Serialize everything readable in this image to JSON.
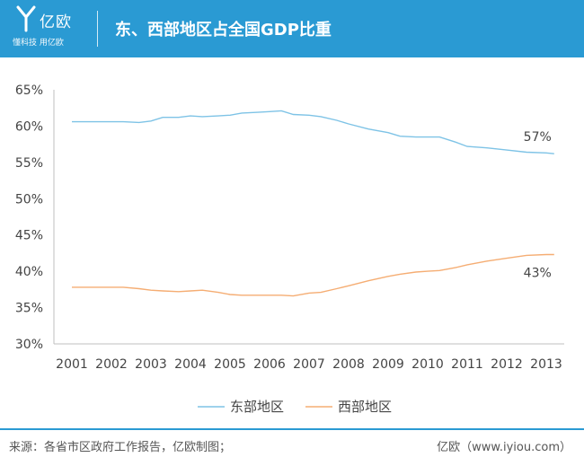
{
  "header": {
    "logo_name": "亿欧",
    "logo_tagline": "懂科技 用亿欧",
    "title": "东、西部地区占全国GDP比重"
  },
  "colors": {
    "header_bg": "#2a9ad3",
    "east": "#7ec3e6",
    "west": "#f5ad73",
    "axis": "#bfbfbf",
    "text": "#444444"
  },
  "chart_data": {
    "type": "line",
    "title": "东、西部地区占全国GDP比重",
    "x": [
      "2001",
      "2002",
      "2003",
      "2004",
      "2005",
      "2006",
      "2007",
      "2008",
      "2009",
      "2010",
      "2011",
      "2012",
      "2013"
    ],
    "ylim": [
      30,
      65
    ],
    "yticks": [
      "30%",
      "35%",
      "40%",
      "45%",
      "50%",
      "55%",
      "60%",
      "65%"
    ],
    "grid": false,
    "legend_position": "bottom",
    "series": [
      {
        "name": "东部地区",
        "color": "#7ec3e6",
        "points": [
          [
            2001,
            60.6
          ],
          [
            2001.5,
            60.6
          ],
          [
            2002,
            60.6
          ],
          [
            2002.3,
            60.6
          ],
          [
            2002.7,
            60.5
          ],
          [
            2003,
            60.7
          ],
          [
            2003.3,
            61.2
          ],
          [
            2003.7,
            61.2
          ],
          [
            2004,
            61.4
          ],
          [
            2004.3,
            61.3
          ],
          [
            2004.7,
            61.4
          ],
          [
            2005,
            61.5
          ],
          [
            2005.3,
            61.8
          ],
          [
            2005.7,
            61.9
          ],
          [
            2006,
            62.0
          ],
          [
            2006.3,
            62.1
          ],
          [
            2006.6,
            61.6
          ],
          [
            2007,
            61.5
          ],
          [
            2007.3,
            61.3
          ],
          [
            2007.7,
            60.8
          ],
          [
            2008,
            60.3
          ],
          [
            2008.5,
            59.6
          ],
          [
            2009,
            59.1
          ],
          [
            2009.3,
            58.6
          ],
          [
            2009.7,
            58.5
          ],
          [
            2010,
            58.5
          ],
          [
            2010.3,
            58.5
          ],
          [
            2010.7,
            57.8
          ],
          [
            2011,
            57.2
          ],
          [
            2011.5,
            57.0
          ],
          [
            2012,
            56.7
          ],
          [
            2012.5,
            56.4
          ],
          [
            2013,
            56.3
          ],
          [
            2013.2,
            56.2
          ]
        ]
      },
      {
        "name": "西部地区",
        "color": "#f5ad73",
        "points": [
          [
            2001,
            37.8
          ],
          [
            2001.5,
            37.8
          ],
          [
            2002,
            37.8
          ],
          [
            2002.3,
            37.8
          ],
          [
            2002.7,
            37.6
          ],
          [
            2003,
            37.4
          ],
          [
            2003.3,
            37.3
          ],
          [
            2003.7,
            37.2
          ],
          [
            2004,
            37.3
          ],
          [
            2004.3,
            37.4
          ],
          [
            2004.7,
            37.1
          ],
          [
            2005,
            36.8
          ],
          [
            2005.3,
            36.7
          ],
          [
            2005.7,
            36.7
          ],
          [
            2006,
            36.7
          ],
          [
            2006.3,
            36.7
          ],
          [
            2006.6,
            36.6
          ],
          [
            2007,
            37.0
          ],
          [
            2007.3,
            37.1
          ],
          [
            2007.7,
            37.6
          ],
          [
            2008,
            38.0
          ],
          [
            2008.5,
            38.7
          ],
          [
            2009,
            39.3
          ],
          [
            2009.3,
            39.6
          ],
          [
            2009.7,
            39.9
          ],
          [
            2010,
            40.0
          ],
          [
            2010.3,
            40.1
          ],
          [
            2010.7,
            40.5
          ],
          [
            2011,
            40.9
          ],
          [
            2011.5,
            41.4
          ],
          [
            2012,
            41.8
          ],
          [
            2012.5,
            42.2
          ],
          [
            2013,
            42.3
          ],
          [
            2013.2,
            42.3
          ]
        ]
      }
    ],
    "annotations": [
      {
        "text": "57%",
        "series": "东部地区"
      },
      {
        "text": "43%",
        "series": "西部地区"
      }
    ]
  },
  "footer": {
    "source": "来源：各省市区政府工作报告，亿欧制图；",
    "brand": "亿欧（www.iyiou.com）"
  }
}
